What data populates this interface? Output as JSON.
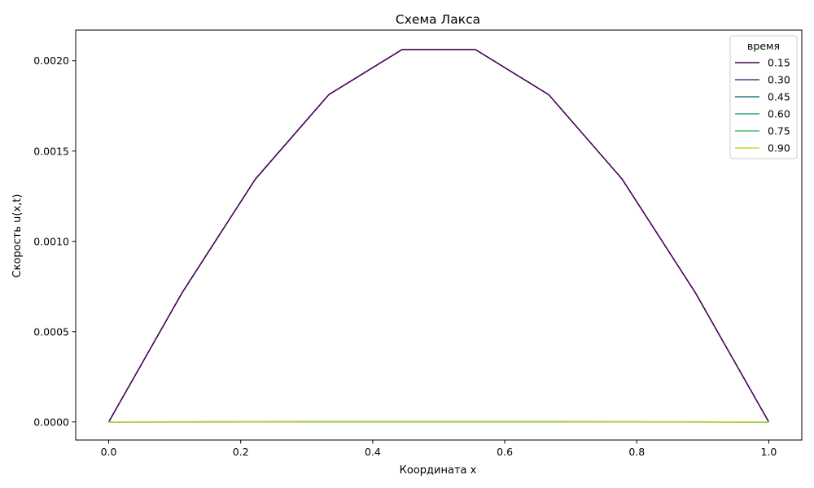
{
  "chart_data": {
    "type": "line",
    "title": "Схема Лакса",
    "xlabel": "Координата x",
    "ylabel": "Скорость u(x,t)",
    "xlim": [
      -0.05,
      1.05
    ],
    "ylim": [
      -0.0001,
      0.00217
    ],
    "xticks": [
      0.0,
      0.2,
      0.4,
      0.6,
      0.8,
      1.0
    ],
    "xtick_labels": [
      "0.0",
      "0.2",
      "0.4",
      "0.6",
      "0.8",
      "1.0"
    ],
    "yticks": [
      0.0,
      0.0005,
      0.001,
      0.0015,
      0.002
    ],
    "ytick_labels": [
      "0.0000",
      "0.0005",
      "0.0010",
      "0.0015",
      "0.0020"
    ],
    "grid": false,
    "legend": {
      "title": "время",
      "placement": "top-right"
    },
    "x": [
      0.0,
      0.1111,
      0.2222,
      0.3333,
      0.4444,
      0.5556,
      0.6667,
      0.7778,
      0.8889,
      1.0
    ],
    "series": [
      {
        "name": "0.15",
        "color": "#440154",
        "values": [
          0.0,
          0.000715,
          0.001345,
          0.001812,
          0.002062,
          0.002062,
          0.001812,
          0.001345,
          0.000715,
          0.0
        ]
      },
      {
        "name": "0.30",
        "color": "#414487",
        "values": [
          0.0,
          4e-07,
          7e-07,
          1e-06,
          1.1e-06,
          1.1e-06,
          1e-06,
          7e-07,
          4e-07,
          0.0
        ]
      },
      {
        "name": "0.45",
        "color": "#2a788e",
        "values": [
          0.0,
          2e-07,
          4e-07,
          5e-07,
          6e-07,
          6e-07,
          5e-07,
          4e-07,
          2e-07,
          0.0
        ]
      },
      {
        "name": "0.60",
        "color": "#22a884",
        "values": [
          0.0,
          1e-07,
          2e-07,
          3e-07,
          3e-07,
          3e-07,
          3e-07,
          2e-07,
          1e-07,
          0.0
        ]
      },
      {
        "name": "0.75",
        "color": "#44bf70",
        "values": [
          0.0,
          0.0,
          1e-07,
          1e-07,
          1e-07,
          1e-07,
          1e-07,
          1e-07,
          0.0,
          0.0
        ]
      },
      {
        "name": "0.90",
        "color": "#bddf26",
        "values": [
          0.0,
          0.0,
          0.0,
          0.0,
          0.0,
          0.0,
          0.0,
          0.0,
          0.0,
          0.0
        ]
      }
    ]
  }
}
